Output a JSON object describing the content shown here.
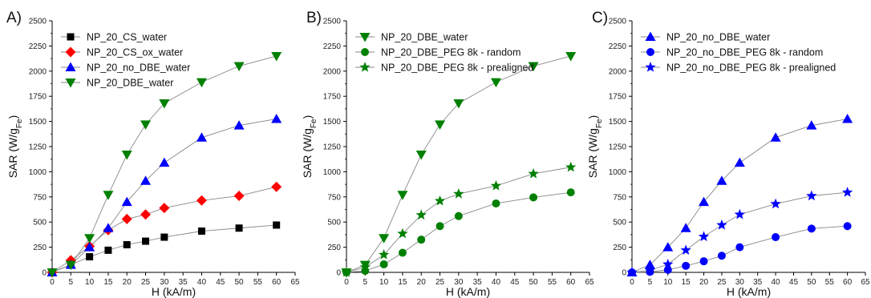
{
  "chart_data": [
    {
      "type": "scatter",
      "panel": "A)",
      "xlabel": "H (kA/m)",
      "ylabel": "SAR (W/g",
      "ylabel_sub": "Fe",
      "ylabel_close": ")",
      "xlim": [
        0,
        65
      ],
      "ylim": [
        0,
        2500
      ],
      "xticks": [
        0,
        5,
        10,
        15,
        20,
        25,
        30,
        35,
        40,
        45,
        50,
        55,
        60,
        65
      ],
      "yticks": [
        0,
        250,
        500,
        750,
        1000,
        1250,
        1500,
        1750,
        2000,
        2250,
        2500
      ],
      "legend_position": "top-left",
      "series": [
        {
          "name": "NP_20_CS_water",
          "marker": "square",
          "color": "#000000",
          "x": [
            0,
            5,
            10,
            15,
            20,
            25,
            30,
            40,
            50,
            60
          ],
          "y": [
            0,
            75,
            155,
            220,
            275,
            310,
            350,
            410,
            440,
            470
          ]
        },
        {
          "name": "NP_20_CS_ox_water",
          "marker": "diamond",
          "color": "#ff0000",
          "x": [
            0,
            5,
            10,
            15,
            20,
            25,
            30,
            40,
            50,
            60
          ],
          "y": [
            0,
            120,
            260,
            420,
            530,
            575,
            640,
            715,
            760,
            850
          ]
        },
        {
          "name": "NP_20_no_DBE_water",
          "marker": "triangle-up",
          "color": "#0000ff",
          "x": [
            0,
            5,
            10,
            15,
            20,
            25,
            30,
            40,
            50,
            60
          ],
          "y": [
            0,
            75,
            250,
            440,
            700,
            910,
            1090,
            1340,
            1460,
            1525
          ]
        },
        {
          "name": "NP_20_DBE_water",
          "marker": "triangle-down",
          "color": "#008000",
          "x": [
            0,
            5,
            10,
            15,
            20,
            25,
            30,
            40,
            50,
            60
          ],
          "y": [
            0,
            75,
            340,
            770,
            1170,
            1470,
            1680,
            1890,
            2050,
            2150
          ]
        }
      ]
    },
    {
      "type": "scatter",
      "panel": "B)",
      "xlabel": "H (kA/m)",
      "ylabel": "SAR (W/g",
      "ylabel_sub": "Fe",
      "ylabel_close": ")",
      "xlim": [
        0,
        65
      ],
      "ylim": [
        0,
        2500
      ],
      "xticks": [
        0,
        5,
        10,
        15,
        20,
        25,
        30,
        35,
        40,
        45,
        50,
        55,
        60,
        65
      ],
      "yticks": [
        0,
        250,
        500,
        750,
        1000,
        1250,
        1500,
        1750,
        2000,
        2250,
        2500
      ],
      "legend_position": "top-left",
      "series": [
        {
          "name": "NP_20_DBE_water",
          "marker": "triangle-down",
          "color": "#008000",
          "x": [
            0,
            5,
            10,
            15,
            20,
            25,
            30,
            40,
            50,
            60
          ],
          "y": [
            0,
            75,
            340,
            770,
            1170,
            1470,
            1680,
            1890,
            2050,
            2150
          ]
        },
        {
          "name": "NP_20_DBE_PEG 8k - random",
          "marker": "circle",
          "color": "#008000",
          "x": [
            0,
            5,
            10,
            15,
            20,
            25,
            30,
            40,
            50,
            60
          ],
          "y": [
            0,
            15,
            80,
            195,
            325,
            460,
            560,
            685,
            745,
            795
          ]
        },
        {
          "name": "NP_20_DBE_PEG 8k - prealigned",
          "marker": "star",
          "color": "#008000",
          "x": [
            0,
            5,
            10,
            15,
            20,
            25,
            30,
            40,
            50,
            60
          ],
          "y": [
            0,
            50,
            175,
            385,
            570,
            710,
            780,
            860,
            980,
            1045
          ]
        }
      ]
    },
    {
      "type": "scatter",
      "panel": "C)",
      "xlabel": "H (kA/m)",
      "ylabel": "SAR (W/g",
      "ylabel_sub": "Fe",
      "ylabel_close": ")",
      "xlim": [
        0,
        65
      ],
      "ylim": [
        0,
        2500
      ],
      "xticks": [
        0,
        5,
        10,
        15,
        20,
        25,
        30,
        35,
        40,
        45,
        50,
        55,
        60,
        65
      ],
      "yticks": [
        0,
        250,
        500,
        750,
        1000,
        1250,
        1500,
        1750,
        2000,
        2250,
        2500
      ],
      "legend_position": "top-left",
      "series": [
        {
          "name": "NP_20_no_DBE_water",
          "marker": "triangle-up",
          "color": "#0000ff",
          "x": [
            0,
            5,
            10,
            15,
            20,
            25,
            30,
            40,
            50,
            60
          ],
          "y": [
            0,
            75,
            250,
            440,
            700,
            910,
            1090,
            1340,
            1460,
            1525
          ]
        },
        {
          "name": "NP_20_no_DBE_PEG 8k - random",
          "marker": "circle",
          "color": "#0000ff",
          "x": [
            0,
            5,
            10,
            15,
            20,
            25,
            30,
            40,
            50,
            60
          ],
          "y": [
            0,
            5,
            25,
            65,
            110,
            165,
            250,
            350,
            435,
            460
          ]
        },
        {
          "name": "NP_20_no_DBE_PEG 8k - prealigned",
          "marker": "star",
          "color": "#0000ff",
          "x": [
            0,
            5,
            10,
            15,
            20,
            25,
            30,
            40,
            50,
            60
          ],
          "y": [
            0,
            20,
            80,
            220,
            355,
            470,
            575,
            680,
            760,
            795
          ]
        }
      ]
    }
  ]
}
